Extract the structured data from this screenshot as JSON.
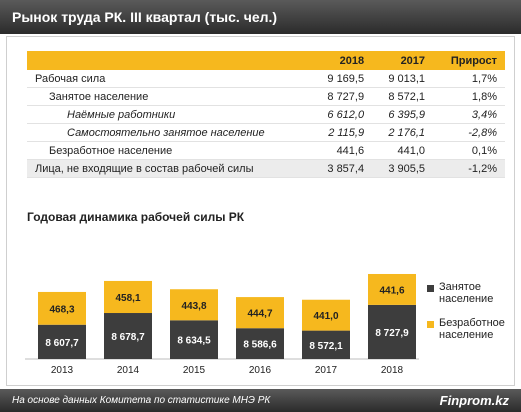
{
  "header": {
    "title": "Рынок труда РК. III квартал (тыс. чел.)"
  },
  "table": {
    "columns": [
      "",
      "2018",
      "2017",
      "Прирост"
    ],
    "rows": [
      {
        "label": "Рабочая сила",
        "v2018": "9 169,5",
        "v2017": "9 013,1",
        "growth": "1,7%"
      },
      {
        "label": "Занятое население",
        "v2018": "8 727,9",
        "v2017": "8 572,1",
        "growth": "1,8%"
      },
      {
        "label": "Наёмные работники",
        "v2018": "6 612,0",
        "v2017": "6 395,9",
        "growth": "3,4%"
      },
      {
        "label": "Самостоятельно занятое население",
        "v2018": "2 115,9",
        "v2017": "2 176,1",
        "growth": "-2,8%"
      },
      {
        "label": "Безработное население",
        "v2018": "441,6",
        "v2017": "441,0",
        "growth": "0,1%"
      },
      {
        "label": "Лица, не входящие в состав рабочей силы",
        "v2018": "3 857,4",
        "v2017": "3 905,5",
        "growth": "-1,2%"
      }
    ]
  },
  "chart_title": "Годовая динамика  рабочей силы РК",
  "chart_data": {
    "type": "bar",
    "stacked": true,
    "categories": [
      "2013",
      "2014",
      "2015",
      "2016",
      "2017",
      "2018"
    ],
    "series": [
      {
        "name": "Занятое население",
        "values": [
          8607.7,
          8678.7,
          8634.5,
          8586.6,
          8572.1,
          8727.9
        ],
        "labels": [
          "8 607,7",
          "8 678,7",
          "8 634,5",
          "8 586,6",
          "8 572,1",
          "8 727,9"
        ],
        "color": "#3d3d3d"
      },
      {
        "name": "Безработное население",
        "values": [
          468.3,
          458.1,
          443.8,
          444.7,
          441.0,
          441.6
        ],
        "labels": [
          "468,3",
          "458,1",
          "443,8",
          "444,7",
          "441,0",
          "441,6"
        ],
        "color": "#f6b81e"
      }
    ],
    "legend_position": "right",
    "title": "Годовая динамика  рабочей силы РК"
  },
  "legend": {
    "employed": "Занятое население",
    "unemployed": "Безработное население"
  },
  "footer": {
    "source": "На основе данных  Комитета по статистике МНЭ РК",
    "brand": "Finprom.kz"
  },
  "colors": {
    "accent": "#f6b81e",
    "dark": "#3d3d3d",
    "header": "#3a3a3a"
  }
}
